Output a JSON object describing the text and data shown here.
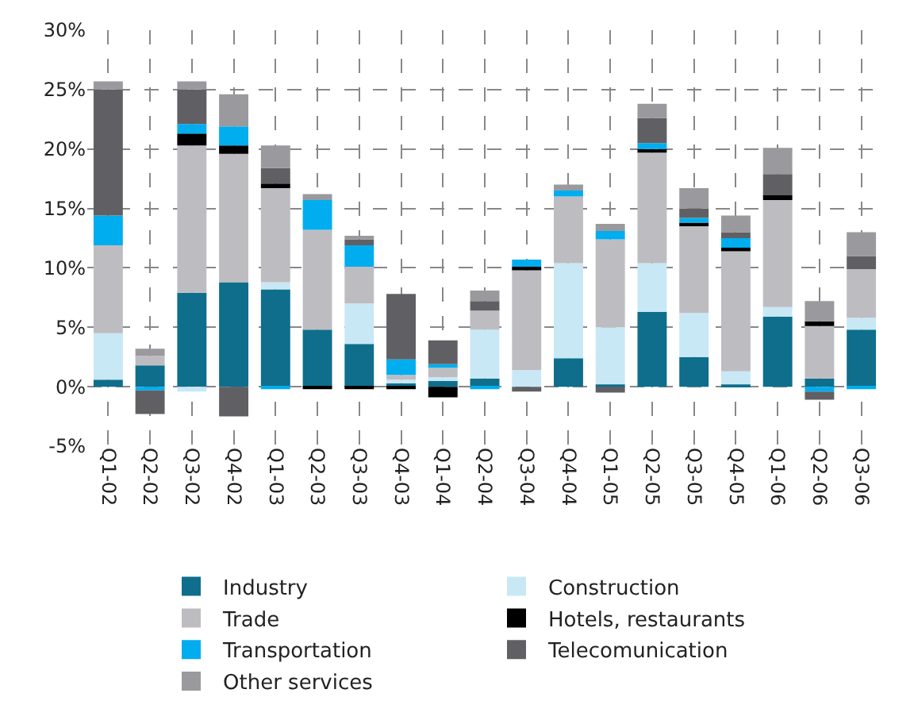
{
  "chart_data": {
    "type": "bar",
    "stacked": true,
    "grid": true,
    "legend": "bottom",
    "categories": [
      "Q1-02",
      "Q2-02",
      "Q3-02",
      "Q4-02",
      "Q1-03",
      "Q2-03",
      "Q3-03",
      "Q4-03",
      "Q1-04",
      "Q2-04",
      "Q3-04",
      "Q4-04",
      "Q1-05",
      "Q2-05",
      "Q3-05",
      "Q4-05",
      "Q1-06",
      "Q2-06",
      "Q3-06"
    ],
    "ylim": [
      -5,
      30
    ],
    "yticks": [
      {
        "value": -5,
        "label": "-5%"
      },
      {
        "value": 0,
        "label": "0%"
      },
      {
        "value": 5,
        "label": "5%"
      },
      {
        "value": 10,
        "label": "10%"
      },
      {
        "value": 15,
        "label": "15%"
      },
      {
        "value": 20,
        "label": "20%"
      },
      {
        "value": 25,
        "label": "25%"
      },
      {
        "value": 30,
        "label": "30%"
      }
    ],
    "series": [
      {
        "name": "Industry",
        "color": "#0e6e8c",
        "values": [
          0.6,
          1.8,
          7.9,
          8.8,
          8.2,
          4.8,
          3.6,
          0.3,
          0.5,
          0.7,
          null,
          2.4,
          0.2,
          6.3,
          2.5,
          0.2,
          5.9,
          0.7,
          4.8
        ]
      },
      {
        "name": "Construction",
        "color": "#c8e8f5",
        "values": [
          3.9,
          null,
          -0.4,
          null,
          0.6,
          null,
          3.4,
          0.3,
          0.3,
          4.1,
          1.4,
          8.0,
          4.8,
          4.1,
          3.7,
          1.1,
          0.8,
          null,
          1.0
        ]
      },
      {
        "name": "Trade",
        "color": "#bdbdc1",
        "values": [
          7.4,
          0.8,
          12.4,
          10.8,
          7.9,
          8.4,
          3.1,
          0.4,
          0.8,
          1.6,
          8.4,
          5.6,
          7.4,
          9.3,
          7.3,
          10.1,
          9.0,
          4.4,
          4.1
        ]
      },
      {
        "name": "Hotels, restaurants",
        "color": "#000000",
        "values": [
          null,
          null,
          1.0,
          0.7,
          0.4,
          -0.2,
          -0.2,
          -0.2,
          -0.9,
          null,
          0.3,
          null,
          null,
          0.3,
          0.3,
          0.3,
          0.4,
          0.4,
          null
        ]
      },
      {
        "name": "Transportation",
        "color": "#00adef",
        "values": [
          2.5,
          -0.3,
          0.8,
          1.6,
          -0.2,
          2.5,
          1.8,
          1.3,
          0.3,
          -0.2,
          0.6,
          0.5,
          0.7,
          0.5,
          0.4,
          0.8,
          null,
          -0.4,
          -0.2
        ]
      },
      {
        "name": "Telecomunication",
        "color": "#606064",
        "values": [
          10.6,
          -2.0,
          2.9,
          -2.5,
          1.3,
          null,
          0.5,
          5.5,
          2.0,
          0.8,
          -0.4,
          null,
          -0.5,
          2.1,
          0.8,
          0.5,
          1.8,
          -0.7,
          1.1
        ]
      },
      {
        "name": "Other services",
        "color": "#9a9a9e",
        "values": [
          0.7,
          0.6,
          0.7,
          2.7,
          1.9,
          0.5,
          0.3,
          null,
          null,
          0.9,
          null,
          0.5,
          0.6,
          1.2,
          1.7,
          1.4,
          2.2,
          1.7,
          2.0
        ]
      }
    ]
  }
}
